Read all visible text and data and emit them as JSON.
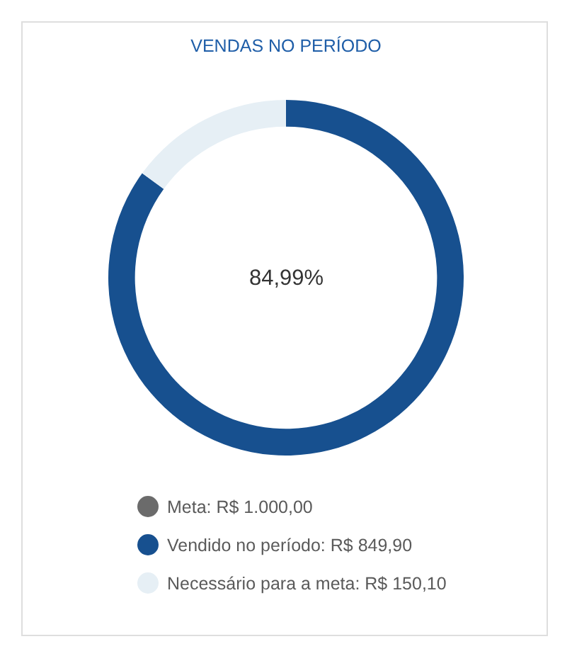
{
  "chart_data": {
    "type": "donut",
    "title": "VENDAS NO PERÍODO",
    "categories": [
      "Meta: R$ 1.000,00",
      "Vendido no período: R$ 849,90",
      "Necessário para a meta: R$ 150,10"
    ],
    "values": [
      null,
      849.9,
      150.1
    ],
    "colors": [
      "#6b6b6b",
      "#17508f",
      "#e6eff5"
    ],
    "annotations": [
      "84,99%"
    ],
    "legend": "bottom"
  }
}
